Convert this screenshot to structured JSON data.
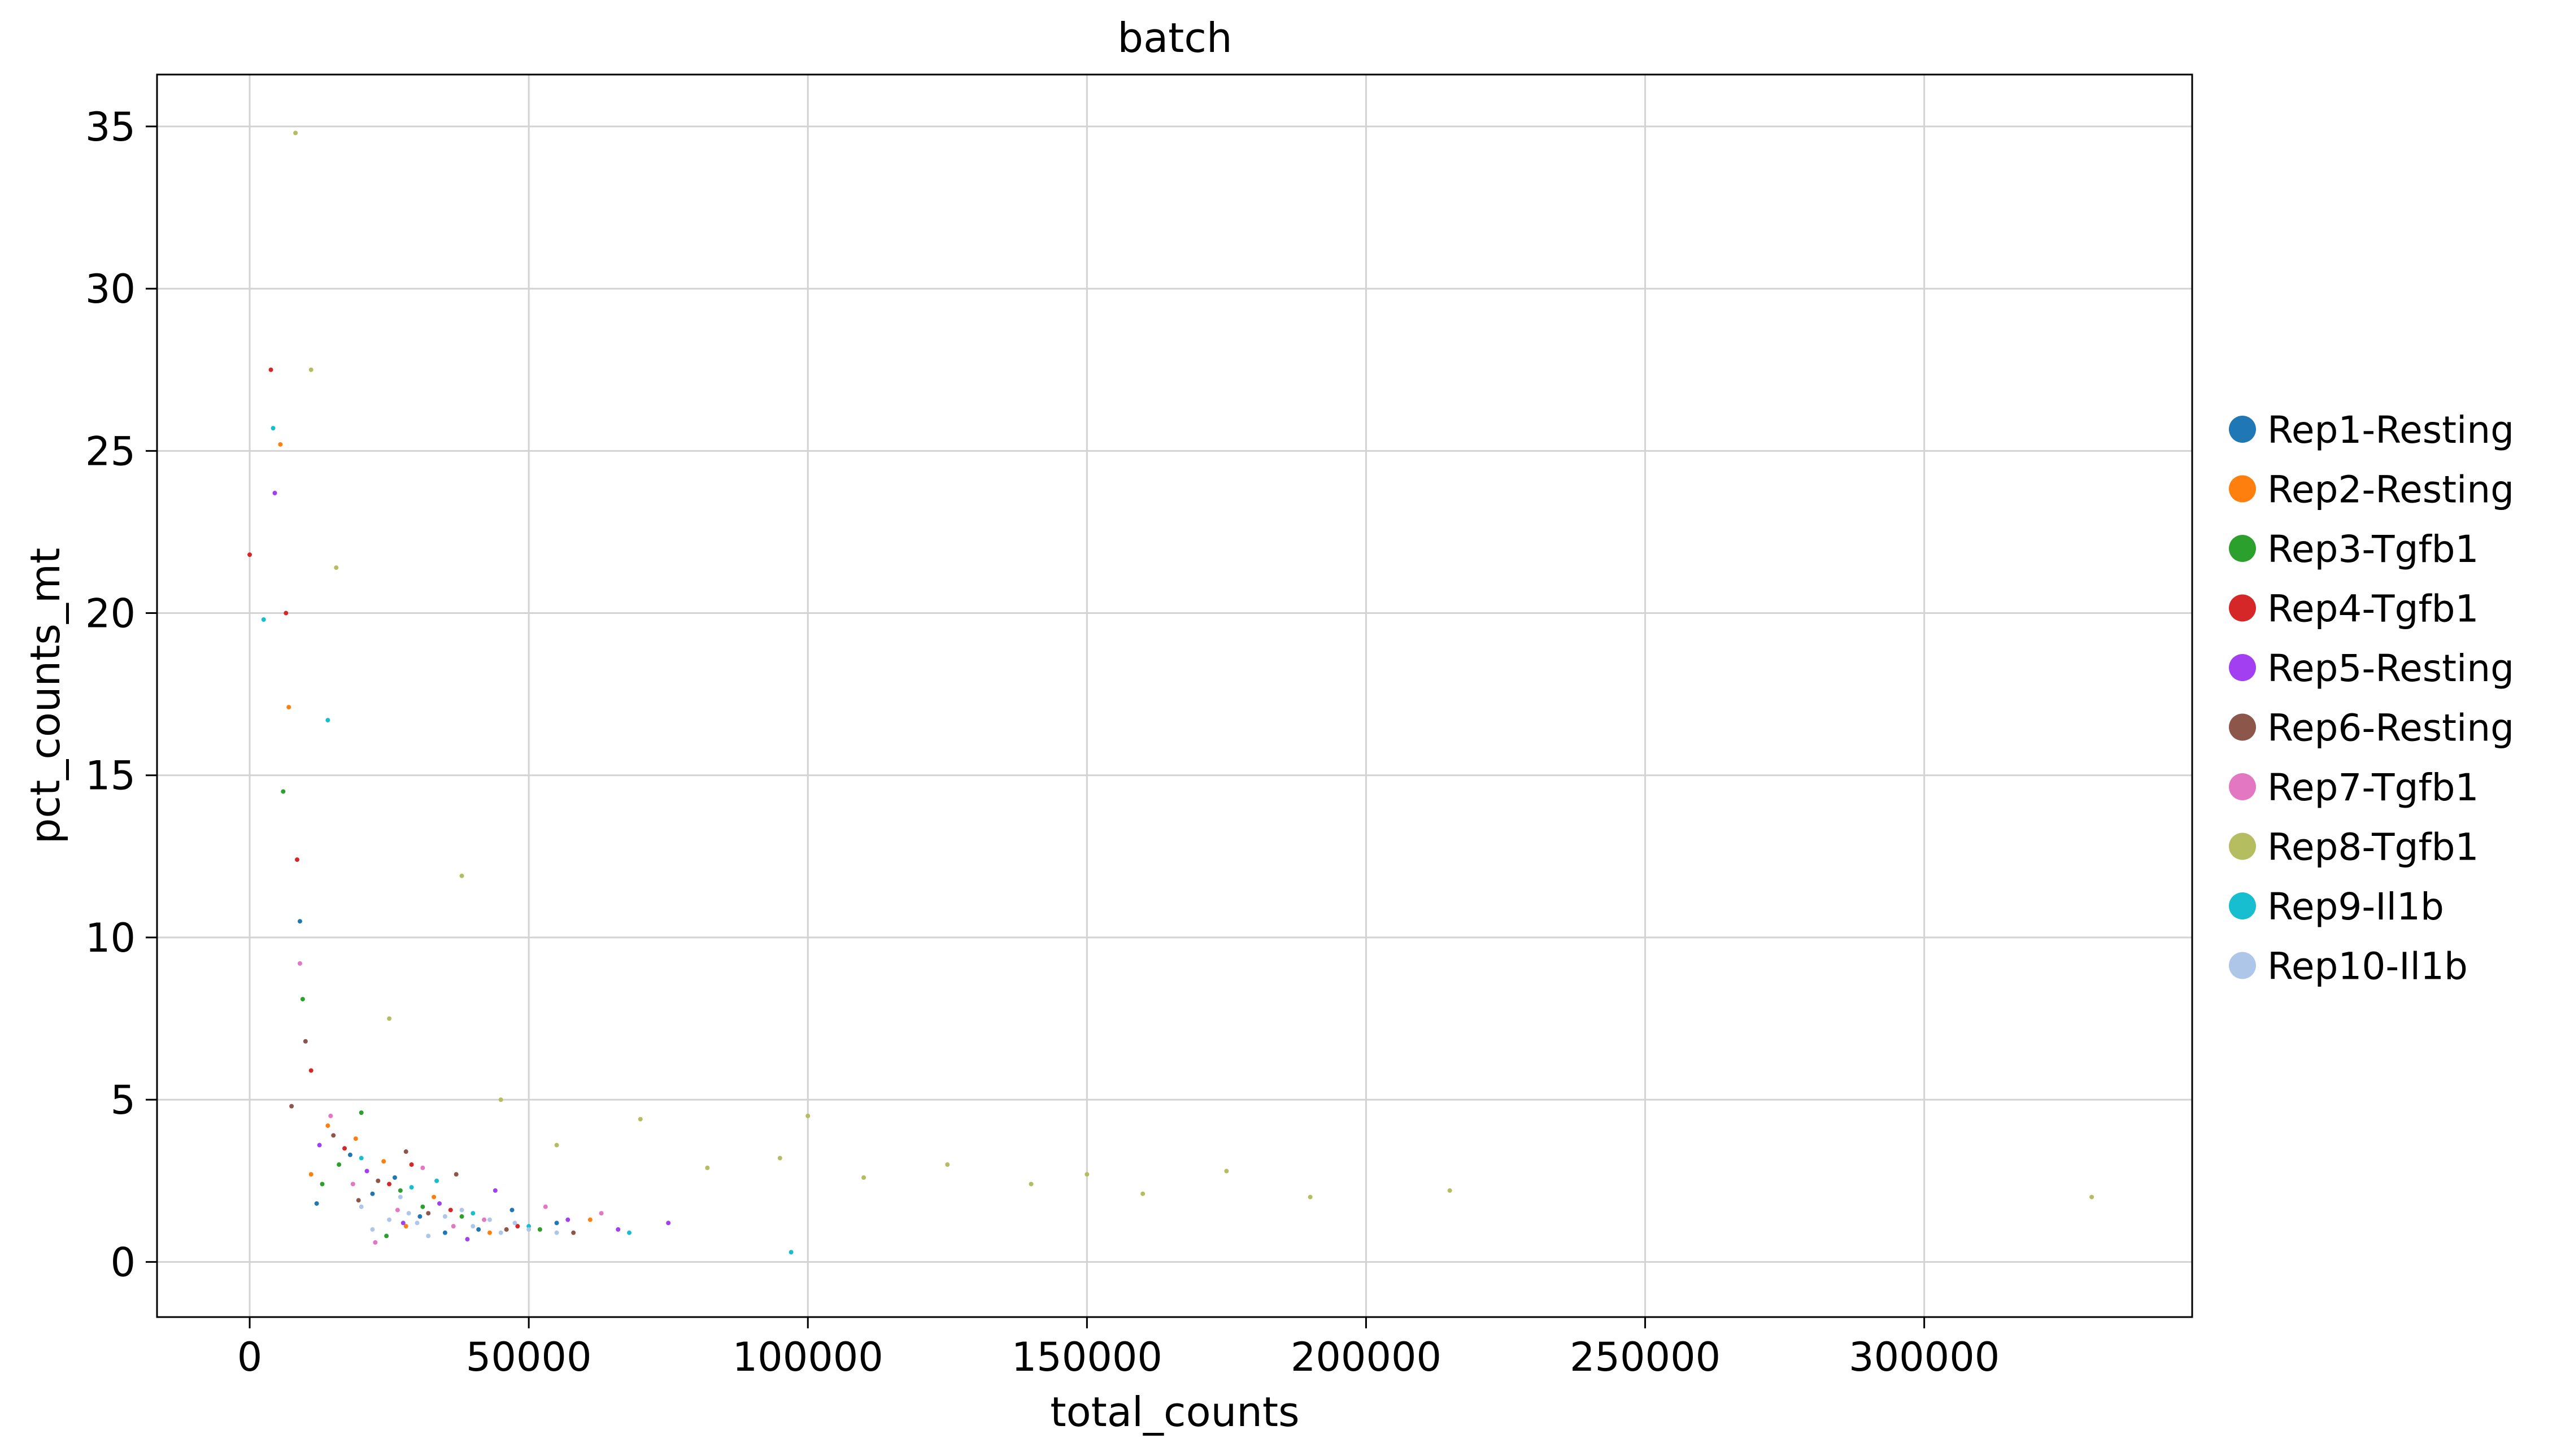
{
  "chart_data": {
    "type": "scatter",
    "title": "batch",
    "xlabel": "total_counts",
    "ylabel": "pct_counts_mt",
    "xlim": [
      -16600,
      348000
    ],
    "ylim": [
      -1.7,
      36.6
    ],
    "xticks": [
      0,
      50000,
      100000,
      150000,
      200000,
      250000,
      300000
    ],
    "xtick_labels": [
      "0",
      "50000",
      "100000",
      "150000",
      "200000",
      "250000",
      "300000"
    ],
    "yticks": [
      0,
      5,
      10,
      15,
      20,
      25,
      30,
      35
    ],
    "ytick_labels": [
      "0",
      "5",
      "10",
      "15",
      "20",
      "25",
      "30",
      "35"
    ],
    "grid": true,
    "legend_position": "right-outside",
    "series": [
      {
        "name": "Rep1-Resting",
        "color": "#1f77b4",
        "points": [
          [
            22000,
            2.1
          ],
          [
            30500,
            1.4
          ],
          [
            41000,
            1.0
          ],
          [
            18000,
            3.3
          ],
          [
            55000,
            1.2
          ],
          [
            9000,
            10.5
          ],
          [
            12000,
            1.8
          ],
          [
            26000,
            2.6
          ],
          [
            35000,
            0.9
          ],
          [
            47000,
            1.6
          ]
        ]
      },
      {
        "name": "Rep2-Resting",
        "color": "#ff7f0e",
        "points": [
          [
            14000,
            4.2
          ],
          [
            24000,
            3.1
          ],
          [
            33000,
            2.0
          ],
          [
            5500,
            25.2
          ],
          [
            7000,
            17.1
          ],
          [
            19000,
            3.8
          ],
          [
            28000,
            1.1
          ],
          [
            43000,
            0.9
          ],
          [
            61000,
            1.3
          ],
          [
            11000,
            2.7
          ]
        ]
      },
      {
        "name": "Rep3-Tgfb1",
        "color": "#2ca02c",
        "points": [
          [
            16000,
            3.0
          ],
          [
            27000,
            2.2
          ],
          [
            38000,
            1.4
          ],
          [
            6000,
            14.5
          ],
          [
            20000,
            4.6
          ],
          [
            9500,
            8.1
          ],
          [
            52000,
            1.0
          ],
          [
            31000,
            1.7
          ],
          [
            13000,
            2.4
          ],
          [
            24500,
            0.8
          ]
        ]
      },
      {
        "name": "Rep4-Tgfb1",
        "color": "#d62728",
        "points": [
          [
            3800,
            27.5
          ],
          [
            6500,
            20.0
          ],
          [
            0,
            21.8
          ],
          [
            17000,
            3.5
          ],
          [
            25000,
            2.4
          ],
          [
            36000,
            1.6
          ],
          [
            48000,
            1.1
          ],
          [
            11000,
            5.9
          ],
          [
            8500,
            12.4
          ],
          [
            29000,
            3.0
          ]
        ]
      },
      {
        "name": "Rep5-Resting",
        "color": "#a23ff0",
        "points": [
          [
            4500,
            23.7
          ],
          [
            21000,
            2.8
          ],
          [
            34000,
            1.8
          ],
          [
            57000,
            1.3
          ],
          [
            66000,
            1.0
          ],
          [
            75000,
            1.2
          ],
          [
            12500,
            3.6
          ],
          [
            44000,
            2.2
          ],
          [
            39000,
            0.7
          ],
          [
            27500,
            1.2
          ]
        ]
      },
      {
        "name": "Rep6-Resting",
        "color": "#8c564b",
        "points": [
          [
            15000,
            3.9
          ],
          [
            23000,
            2.5
          ],
          [
            32000,
            1.5
          ],
          [
            46000,
            1.0
          ],
          [
            10000,
            6.8
          ],
          [
            19500,
            1.9
          ],
          [
            58000,
            0.9
          ],
          [
            28000,
            3.4
          ],
          [
            37000,
            2.7
          ],
          [
            7500,
            4.8
          ]
        ]
      },
      {
        "name": "Rep7-Tgfb1",
        "color": "#e377c2",
        "points": [
          [
            18500,
            2.4
          ],
          [
            26500,
            1.6
          ],
          [
            42000,
            1.3
          ],
          [
            9000,
            9.2
          ],
          [
            31000,
            2.9
          ],
          [
            14500,
            4.5
          ],
          [
            53000,
            1.7
          ],
          [
            22500,
            0.6
          ],
          [
            63000,
            1.5
          ],
          [
            36500,
            1.1
          ]
        ]
      },
      {
        "name": "Rep8-Tgfb1",
        "color": "#b5bd61",
        "points": [
          [
            8200,
            34.8
          ],
          [
            11000,
            27.5
          ],
          [
            15500,
            21.4
          ],
          [
            38000,
            11.9
          ],
          [
            45000,
            5.0
          ],
          [
            70000,
            4.4
          ],
          [
            95000,
            3.2
          ],
          [
            110000,
            2.6
          ],
          [
            125000,
            3.0
          ],
          [
            140000,
            2.4
          ],
          [
            160000,
            2.1
          ],
          [
            175000,
            2.8
          ],
          [
            190000,
            2.0
          ],
          [
            215000,
            2.2
          ],
          [
            330000,
            2.0
          ],
          [
            25000,
            7.5
          ],
          [
            55000,
            3.6
          ],
          [
            82000,
            2.9
          ],
          [
            100000,
            4.5
          ],
          [
            150000,
            2.7
          ]
        ]
      },
      {
        "name": "Rep9-Il1b",
        "color": "#17becf",
        "points": [
          [
            4200,
            25.7
          ],
          [
            2500,
            19.8
          ],
          [
            14000,
            16.7
          ],
          [
            20000,
            3.2
          ],
          [
            29000,
            2.3
          ],
          [
            40000,
            1.5
          ],
          [
            50000,
            1.1
          ],
          [
            68000,
            0.9
          ],
          [
            97000,
            0.3
          ],
          [
            33500,
            2.5
          ]
        ]
      },
      {
        "name": "Rep10-Il1b",
        "color": "#aec7e8",
        "points": [
          [
            20000,
            1.7
          ],
          [
            25000,
            1.3
          ],
          [
            30000,
            1.2
          ],
          [
            35000,
            1.4
          ],
          [
            40000,
            1.1
          ],
          [
            45000,
            0.9
          ],
          [
            50000,
            1.0
          ],
          [
            27000,
            2.0
          ],
          [
            32000,
            0.8
          ],
          [
            38000,
            1.6
          ],
          [
            22000,
            1.0
          ],
          [
            43000,
            1.3
          ],
          [
            55000,
            0.9
          ],
          [
            28500,
            1.5
          ],
          [
            47500,
            1.2
          ]
        ]
      }
    ]
  }
}
